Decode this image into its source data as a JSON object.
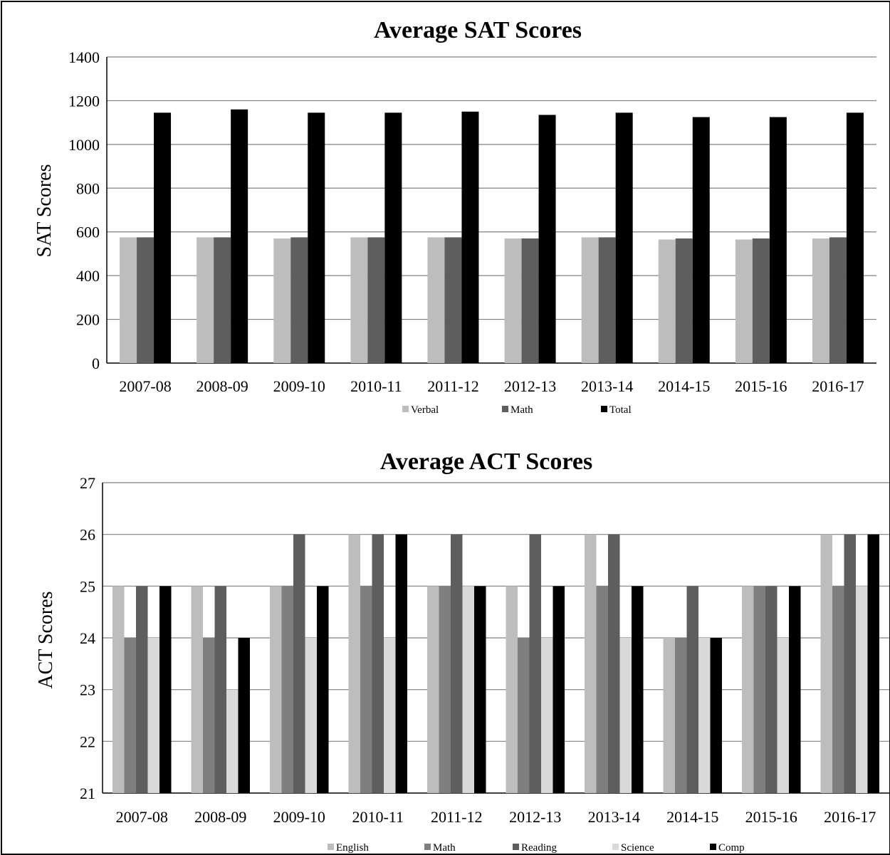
{
  "colors": {
    "verbal": "#bdbdbd",
    "math": "#5e5e5e",
    "total": "#000000",
    "english": "#bdbdbd",
    "act_math": "#7f7f7f",
    "reading": "#5e5e5e",
    "science": "#d9d9d9",
    "comp": "#000000",
    "grid": "#808080",
    "axis": "#000000"
  },
  "chart_data": [
    {
      "type": "bar",
      "title": "Average SAT Scores",
      "xlabel": "",
      "ylabel": "SAT Scores",
      "ylim": [
        0,
        1400
      ],
      "yticks": [
        0,
        200,
        400,
        600,
        800,
        1000,
        1200,
        1400
      ],
      "grid": true,
      "legend_position": "bottom",
      "categories": [
        "2007-08",
        "2008-09",
        "2009-10",
        "2010-11",
        "2011-12",
        "2012-13",
        "2013-14",
        "2014-15",
        "2015-16",
        "2016-17"
      ],
      "series": [
        {
          "name": "Verbal",
          "color": "#bdbdbd",
          "values": [
            575,
            575,
            570,
            575,
            575,
            570,
            575,
            565,
            565,
            570
          ]
        },
        {
          "name": "Math",
          "color": "#5e5e5e",
          "values": [
            575,
            575,
            575,
            575,
            575,
            570,
            575,
            570,
            570,
            575
          ]
        },
        {
          "name": "Total",
          "color": "#000000",
          "values": [
            1145,
            1160,
            1145,
            1145,
            1150,
            1135,
            1145,
            1125,
            1125,
            1145
          ]
        }
      ]
    },
    {
      "type": "bar",
      "title": "Average ACT Scores",
      "xlabel": "",
      "ylabel": "ACT Scores",
      "ylim": [
        21,
        27
      ],
      "yticks": [
        21,
        22,
        23,
        24,
        25,
        26,
        27
      ],
      "grid": true,
      "legend_position": "bottom",
      "categories": [
        "2007-08",
        "2008-09",
        "2009-10",
        "2010-11",
        "2011-12",
        "2012-13",
        "2013-14",
        "2014-15",
        "2015-16",
        "2016-17"
      ],
      "series": [
        {
          "name": "English",
          "color": "#bdbdbd",
          "values": [
            25,
            25,
            25,
            26,
            25,
            25,
            26,
            24,
            25,
            26
          ]
        },
        {
          "name": "Math",
          "color": "#7f7f7f",
          "values": [
            24,
            24,
            25,
            25,
            25,
            24,
            25,
            24,
            25,
            25
          ]
        },
        {
          "name": "Reading",
          "color": "#5e5e5e",
          "values": [
            25,
            25,
            26,
            26,
            26,
            26,
            26,
            25,
            25,
            26
          ]
        },
        {
          "name": "Science",
          "color": "#d9d9d9",
          "values": [
            24,
            23,
            24,
            24,
            25,
            24,
            24,
            24,
            24,
            25
          ]
        },
        {
          "name": "Comp",
          "color": "#000000",
          "values": [
            25,
            24,
            25,
            26,
            25,
            25,
            25,
            24,
            25,
            26
          ]
        }
      ]
    }
  ]
}
